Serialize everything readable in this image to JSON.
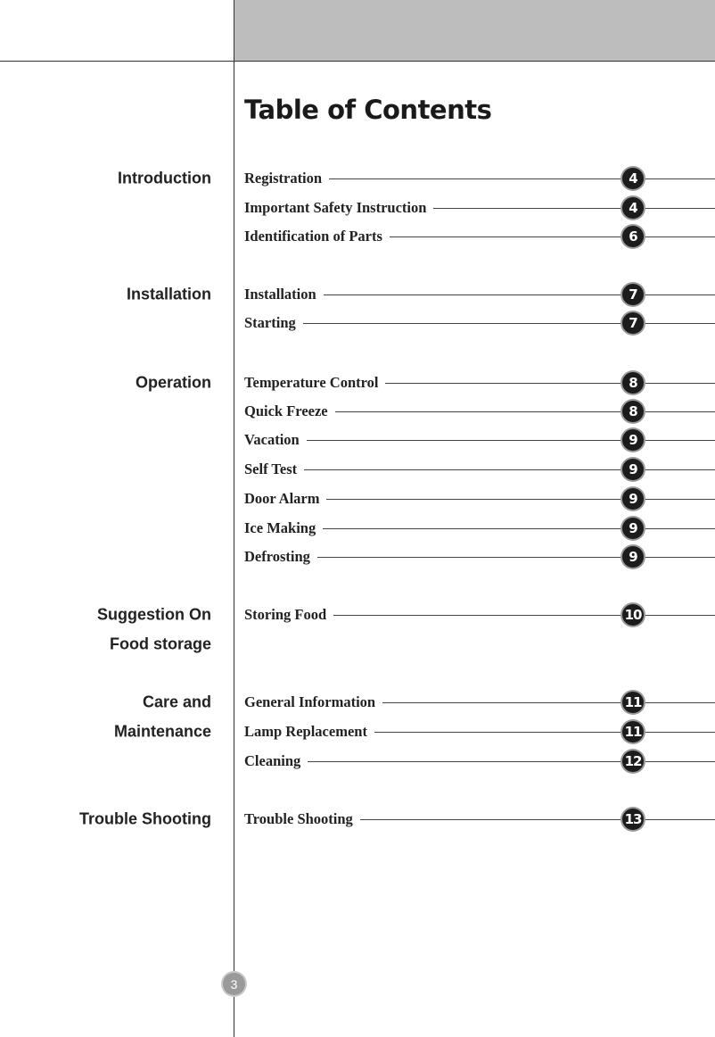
{
  "title": "Table of Contents",
  "page_number": "3",
  "colors": {
    "header_band": "#bdbdbd",
    "badge": "#1c1c1c",
    "page_badge": "#9a9a9a"
  },
  "sections": [
    {
      "label": "Introduction"
    },
    {
      "label": "Installation"
    },
    {
      "label": "Operation"
    },
    {
      "label": "Suggestion On"
    },
    {
      "label": "Food storage"
    },
    {
      "label": "Care and"
    },
    {
      "label": "Maintenance"
    },
    {
      "label": "Trouble Shooting"
    }
  ],
  "entries": [
    {
      "label": "Registration",
      "page": "4"
    },
    {
      "label": "Important Safety Instruction",
      "page": "4"
    },
    {
      "label": "Identification of Parts",
      "page": "6"
    },
    {
      "label": "Installation",
      "page": "7"
    },
    {
      "label": "Starting",
      "page": "7"
    },
    {
      "label": "Temperature Control",
      "page": "8"
    },
    {
      "label": "Quick Freeze",
      "page": "8"
    },
    {
      "label": "Vacation",
      "page": "9"
    },
    {
      "label": "Self Test",
      "page": "9"
    },
    {
      "label": "Door Alarm",
      "page": "9"
    },
    {
      "label": "Ice Making",
      "page": "9"
    },
    {
      "label": "Defrosting",
      "page": "9"
    },
    {
      "label": "Storing Food",
      "page": "10"
    },
    {
      "label": "General Information",
      "page": "11"
    },
    {
      "label": "Lamp Replacement",
      "page": "11"
    },
    {
      "label": "Cleaning",
      "page": "12"
    },
    {
      "label": "Trouble Shooting",
      "page": "13"
    }
  ]
}
